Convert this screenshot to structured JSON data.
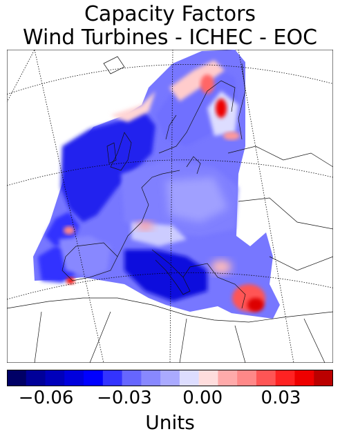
{
  "title": {
    "line1": "Capacity Factors",
    "line2": "Wind Turbines - ICHEC - EOC"
  },
  "colorbar": {
    "colors": [
      "#000066",
      "#000099",
      "#0000bb",
      "#0000dd",
      "#0000ff",
      "#3333ff",
      "#6666ff",
      "#8888ff",
      "#aaaaff",
      "#ddddff",
      "#ffdddd",
      "#ffaaaa",
      "#ff8888",
      "#ff5555",
      "#ff2222",
      "#ee0000",
      "#bb0000"
    ],
    "min": -0.075,
    "max": 0.05,
    "ticks": [
      {
        "value": -0.06,
        "label": "−0.06"
      },
      {
        "value": -0.03,
        "label": "−0.03"
      },
      {
        "value": 0.0,
        "label": "0.00"
      },
      {
        "value": 0.03,
        "label": "0.03"
      }
    ],
    "label": "Units"
  },
  "map": {
    "projection": "lambert-conformal",
    "region": "Europe",
    "fill_colors": {
      "deep_blue": "#1a1aff",
      "mid_blue": "#5555ff",
      "light_blue": "#9999ff",
      "pale_blue": "#ccccff",
      "pale_red": "#ffcccc",
      "red": "#ff3333",
      "dark_red": "#cc0000"
    }
  }
}
